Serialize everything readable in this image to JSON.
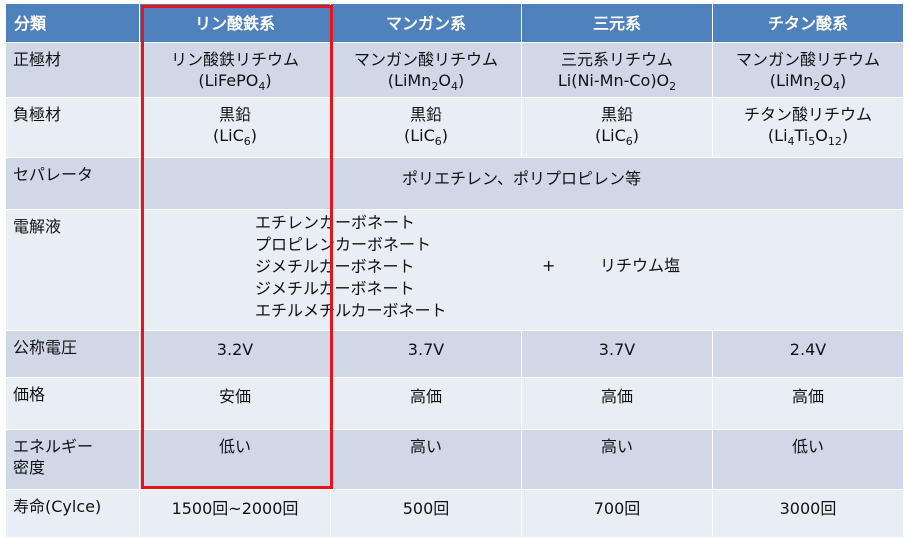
{
  "header": {
    "corner": "分類",
    "cols": [
      "リン酸鉄系",
      "マンガン系",
      "三元系",
      "チタン酸系"
    ]
  },
  "rows": {
    "positive": {
      "label": "正極材",
      "cells": [
        {
          "name": "リン酸鉄リチウム",
          "formula": [
            "(LiFePO",
            "4",
            ")"
          ]
        },
        {
          "name": "マンガン酸リチウム",
          "formula": [
            "(LiMn",
            "2",
            "O",
            "4",
            ")"
          ]
        },
        {
          "name": "三元系リチウム",
          "formula": [
            "Li(Ni-Mn-Co)O",
            "2"
          ]
        },
        {
          "name": "マンガン酸リチウム",
          "formula": [
            "(LiMn",
            "2",
            "O",
            "4",
            ")"
          ]
        }
      ]
    },
    "negative": {
      "label": "負極材",
      "cells": [
        {
          "name": "黒鉛",
          "formula": [
            "(LiC",
            "6",
            ")"
          ]
        },
        {
          "name": "黒鉛",
          "formula": [
            "(LiC",
            "6",
            ")"
          ]
        },
        {
          "name": "黒鉛",
          "formula": [
            "(LiC",
            "6",
            ")"
          ]
        },
        {
          "name": "チタン酸リチウム",
          "formula": [
            "(Li",
            "4",
            "Ti",
            "5",
            "O",
            "12",
            ")"
          ]
        }
      ]
    },
    "separator": {
      "label": "セパレータ",
      "value": "ポリエチレン、ポリプロピレン等"
    },
    "electrolyte": {
      "label": "電解液",
      "solvents": [
        "エチレンカーボネート",
        "プロピレンカーボネート",
        "ジメチルカーボネート",
        "ジメチルカーボネート",
        "エチルメチルカーボネート"
      ],
      "plus": "+",
      "salt": "リチウム塩"
    },
    "voltage": {
      "label": "公称電圧",
      "values": [
        "3.2V",
        "3.7V",
        "3.7V",
        "2.4V"
      ]
    },
    "price": {
      "label": "価格",
      "values": [
        "安価",
        "高価",
        "高価",
        "高価"
      ]
    },
    "energy": {
      "label": [
        "エネルギー",
        "密度"
      ],
      "values": [
        "低い",
        "高い",
        "高い",
        "低い"
      ]
    },
    "life": {
      "label": "寿命(Cylce)",
      "values": [
        "1500回~2000回",
        "500回",
        "700回",
        "3000回"
      ]
    }
  },
  "colors": {
    "header_bg": "#4f81bd",
    "row_odd": "#d0d8e8",
    "row_even": "#e9edf4",
    "highlight": "#e8141c"
  }
}
